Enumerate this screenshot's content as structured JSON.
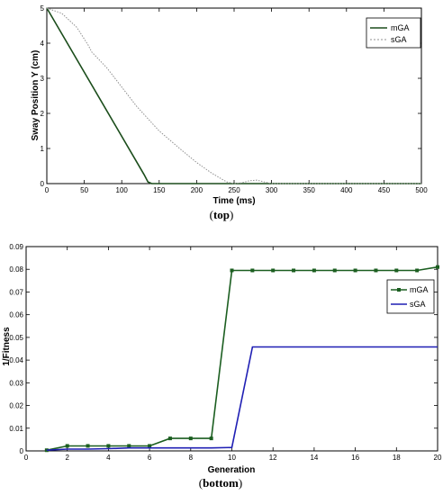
{
  "chart_data": [
    {
      "type": "line",
      "caption_open": "(",
      "caption_word": "top",
      "caption_close": ")",
      "xlabel": "Time (ms)",
      "ylabel": "Sway  Position Y (cm)",
      "xlim": [
        0,
        500
      ],
      "ylim": [
        0,
        5
      ],
      "xticks": [
        0,
        50,
        100,
        150,
        200,
        250,
        300,
        350,
        400,
        450,
        500
      ],
      "yticks": [
        0,
        1,
        2,
        3,
        4,
        5
      ],
      "grid": false,
      "legend_position": "top-right",
      "series": [
        {
          "name": "mGA",
          "color": "#1b4d1b",
          "style": "solid",
          "x": [
            0,
            130,
            135,
            140,
            500
          ],
          "y": [
            5,
            0.25,
            0.05,
            0.0,
            0.0
          ]
        },
        {
          "name": "sGA",
          "color": "#909090",
          "style": "dotted",
          "x": [
            0,
            20,
            40,
            55,
            60,
            80,
            100,
            120,
            150,
            180,
            200,
            220,
            240,
            250,
            260,
            270,
            280,
            290,
            300,
            500
          ],
          "y": [
            5,
            4.85,
            4.45,
            3.95,
            3.75,
            3.3,
            2.75,
            2.2,
            1.5,
            0.95,
            0.6,
            0.3,
            0.05,
            0.0,
            0.02,
            0.08,
            0.1,
            0.05,
            0.0,
            0.0
          ]
        }
      ]
    },
    {
      "type": "line",
      "caption_open": "(",
      "caption_word": "bottom",
      "caption_close": ")",
      "xlabel": "Generation",
      "ylabel": "1/Fitness",
      "xlim": [
        0,
        20
      ],
      "ylim": [
        0,
        0.09
      ],
      "xticks": [
        0,
        2,
        4,
        6,
        8,
        10,
        12,
        14,
        16,
        18,
        20
      ],
      "yticks": [
        "0",
        "0.01",
        "0.02",
        "0.03",
        "0.04",
        "0.05",
        "0.06",
        "0.07",
        "0.08",
        "0.09"
      ],
      "grid": false,
      "legend_position": "top-right",
      "series": [
        {
          "name": "mGA",
          "color": "#1b5e20",
          "style": "solid",
          "markers": true,
          "x": [
            1,
            2,
            3,
            4,
            5,
            6,
            7,
            8,
            9,
            10,
            11,
            12,
            13,
            14,
            15,
            16,
            17,
            18,
            19,
            20
          ],
          "y": [
            0.0003,
            0.0022,
            0.0022,
            0.0022,
            0.0022,
            0.0022,
            0.0055,
            0.0055,
            0.0055,
            0.0795,
            0.0795,
            0.0795,
            0.0795,
            0.0795,
            0.0795,
            0.0795,
            0.0795,
            0.0795,
            0.0795,
            0.081
          ]
        },
        {
          "name": "sGA",
          "color": "#1f1fb4",
          "style": "solid",
          "markers": false,
          "x": [
            1,
            2,
            3,
            4,
            5,
            6,
            7,
            8,
            9,
            10,
            11,
            12,
            13,
            14,
            15,
            16,
            17,
            18,
            19,
            20
          ],
          "y": [
            0.0003,
            0.0008,
            0.0008,
            0.001,
            0.0013,
            0.0013,
            0.0013,
            0.0013,
            0.0013,
            0.0015,
            0.0458,
            0.0458,
            0.0458,
            0.0458,
            0.0458,
            0.0458,
            0.0458,
            0.0458,
            0.0458,
            0.0458
          ]
        }
      ]
    }
  ]
}
